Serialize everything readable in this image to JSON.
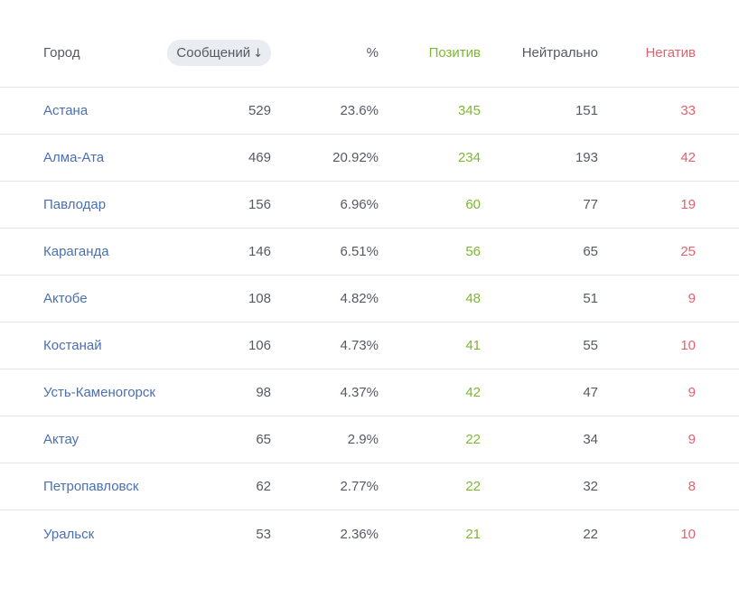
{
  "header": {
    "city": "Город",
    "messages": "Сообщений",
    "sort_arrow": "↓",
    "percent": "%",
    "positive": "Позитив",
    "neutral": "Нейтрально",
    "negative": "Негатив"
  },
  "colors": {
    "city_link": "#4a6fb5",
    "positive": "#7cb82f",
    "neutral": "#555a63",
    "negative": "#e5606b"
  },
  "rows": [
    {
      "city": "Астана",
      "messages": "529",
      "percent": "23.6%",
      "positive": "345",
      "neutral": "151",
      "negative": "33"
    },
    {
      "city": "Алма-Ата",
      "messages": "469",
      "percent": "20.92%",
      "positive": "234",
      "neutral": "193",
      "negative": "42"
    },
    {
      "city": "Павлодар",
      "messages": "156",
      "percent": "6.96%",
      "positive": "60",
      "neutral": "77",
      "negative": "19"
    },
    {
      "city": "Караганда",
      "messages": "146",
      "percent": "6.51%",
      "positive": "56",
      "neutral": "65",
      "negative": "25"
    },
    {
      "city": "Актобе",
      "messages": "108",
      "percent": "4.82%",
      "positive": "48",
      "neutral": "51",
      "negative": "9"
    },
    {
      "city": "Костанай",
      "messages": "106",
      "percent": "4.73%",
      "positive": "41",
      "neutral": "55",
      "negative": "10"
    },
    {
      "city": "Усть-Каменогорск",
      "messages": "98",
      "percent": "4.37%",
      "positive": "42",
      "neutral": "47",
      "negative": "9"
    },
    {
      "city": "Актау",
      "messages": "65",
      "percent": "2.9%",
      "positive": "22",
      "neutral": "34",
      "negative": "9"
    },
    {
      "city": "Петропавловск",
      "messages": "62",
      "percent": "2.77%",
      "positive": "22",
      "neutral": "32",
      "negative": "8"
    },
    {
      "city": "Уральск",
      "messages": "53",
      "percent": "2.36%",
      "positive": "21",
      "neutral": "22",
      "negative": "10"
    }
  ]
}
